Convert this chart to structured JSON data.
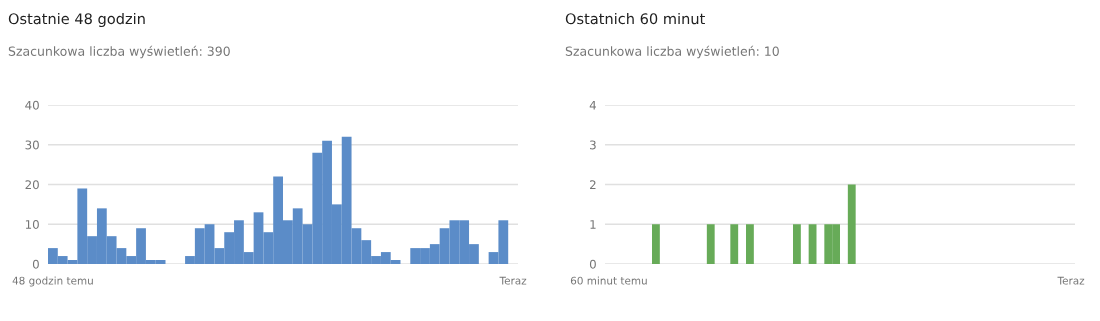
{
  "chart_data": [
    {
      "type": "bar",
      "title": "Ostatnie 48 godzin",
      "subtitle": "Szacunkowa liczba wyświetleń: 390",
      "categories": [
        "48 godzin temu",
        null,
        null,
        null,
        null,
        null,
        null,
        null,
        null,
        null,
        null,
        null,
        null,
        null,
        null,
        null,
        null,
        null,
        null,
        null,
        null,
        null,
        null,
        null,
        null,
        null,
        null,
        null,
        null,
        null,
        null,
        null,
        null,
        null,
        null,
        null,
        null,
        null,
        null,
        null,
        null,
        null,
        null,
        null,
        null,
        null,
        null,
        "Teraz"
      ],
      "values": [
        4,
        2,
        1,
        19,
        7,
        14,
        7,
        4,
        2,
        9,
        1,
        1,
        0,
        0,
        2,
        9,
        10,
        4,
        8,
        11,
        3,
        13,
        8,
        22,
        11,
        14,
        10,
        28,
        31,
        15,
        32,
        9,
        6,
        2,
        3,
        1,
        0,
        4,
        4,
        5,
        9,
        11,
        11,
        5,
        0,
        3,
        11,
        0
      ],
      "color": "#5b8cc8",
      "ylim": [
        0,
        40
      ],
      "yticks": [
        0,
        10,
        20,
        30,
        40
      ],
      "grid": "y"
    },
    {
      "type": "bar",
      "title": "Ostatnich 60 minut",
      "subtitle": "Szacunkowa liczba wyświetleń: 10",
      "categories": [
        "60 minut temu",
        null,
        null,
        null,
        null,
        null,
        null,
        null,
        null,
        null,
        null,
        null,
        null,
        null,
        null,
        null,
        null,
        null,
        null,
        null,
        null,
        null,
        null,
        null,
        null,
        null,
        null,
        null,
        null,
        null,
        null,
        null,
        null,
        null,
        null,
        null,
        null,
        null,
        null,
        null,
        null,
        null,
        null,
        null,
        null,
        null,
        null,
        null,
        null,
        null,
        null,
        null,
        null,
        null,
        null,
        null,
        null,
        null,
        null,
        "Teraz"
      ],
      "values": [
        0,
        0,
        0,
        0,
        0,
        0,
        1,
        0,
        0,
        0,
        0,
        0,
        0,
        1,
        0,
        0,
        1,
        0,
        1,
        0,
        0,
        0,
        0,
        0,
        1,
        0,
        1,
        0,
        1,
        1,
        0,
        2,
        0,
        0,
        0,
        0,
        0,
        0,
        0,
        0,
        0,
        0,
        0,
        0,
        0,
        0,
        0,
        0,
        0,
        0,
        0,
        0,
        0,
        0,
        0,
        0,
        0,
        0,
        0,
        0
      ],
      "color": "#67ab58",
      "ylim": [
        0,
        4
      ],
      "yticks": [
        0,
        1,
        2,
        3,
        4
      ],
      "grid": "y"
    }
  ]
}
